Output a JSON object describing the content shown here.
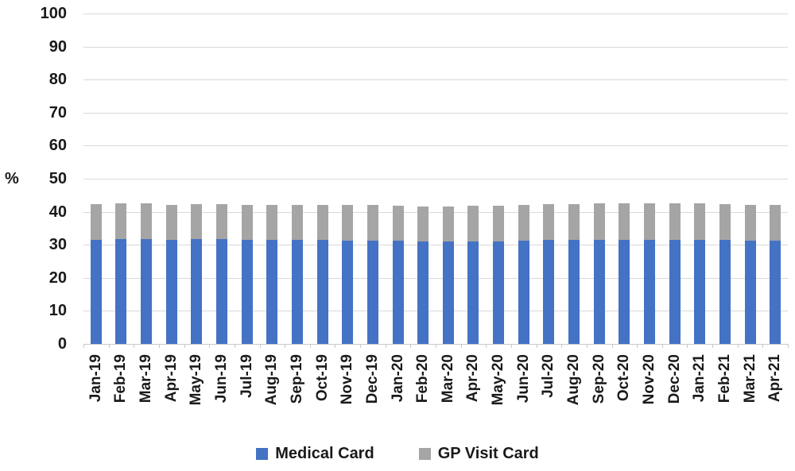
{
  "chart_data": {
    "type": "bar",
    "stacked": true,
    "title": "",
    "xlabel": "",
    "ylabel": "%",
    "ylim": [
      0,
      100
    ],
    "ytick_step": 10,
    "y_tick_labels": [
      "100",
      "90",
      "80",
      "70",
      "60",
      "50",
      "40",
      "30",
      "20",
      "10",
      "0"
    ],
    "grid": true,
    "legend_position": "bottom",
    "categories": [
      "Jan-19",
      "Feb-19",
      "Mar-19",
      "Apr-19",
      "May-19",
      "Jun-19",
      "Jul-19",
      "Aug-19",
      "Sep-19",
      "Oct-19",
      "Nov-19",
      "Dec-19",
      "Jan-20",
      "Feb-20",
      "Mar-20",
      "Apr-20",
      "May-20",
      "Jun-20",
      "Jul-20",
      "Aug-20",
      "Sep-20",
      "Oct-20",
      "Nov-20",
      "Dec-20",
      "Jan-21",
      "Feb-21",
      "Mar-21",
      "Apr-21"
    ],
    "series": [
      {
        "name": "Medical Card",
        "color": "#4472C4",
        "values": [
          31.6,
          31.7,
          31.7,
          31.6,
          31.7,
          31.7,
          31.5,
          31.6,
          31.5,
          31.4,
          31.3,
          31.3,
          31.2,
          31.0,
          30.9,
          31.0,
          31.1,
          31.2,
          31.4,
          31.5,
          31.6,
          31.6,
          31.6,
          31.6,
          31.6,
          31.5,
          31.3,
          31.3
        ]
      },
      {
        "name": "GP Visit Card",
        "color": "#A5A5A5",
        "values": [
          10.8,
          10.8,
          10.8,
          10.5,
          10.7,
          10.7,
          10.6,
          10.5,
          10.5,
          10.6,
          10.7,
          10.7,
          10.7,
          10.5,
          10.6,
          10.8,
          10.8,
          10.8,
          10.9,
          10.9,
          10.9,
          10.9,
          10.9,
          10.9,
          10.9,
          10.7,
          10.7,
          10.7
        ]
      }
    ],
    "colors": {
      "gridline": "#D9D9D9",
      "axis_line": "#C9C9C9",
      "label_text": "#1A1A1A",
      "background": "#FFFFFF"
    }
  }
}
